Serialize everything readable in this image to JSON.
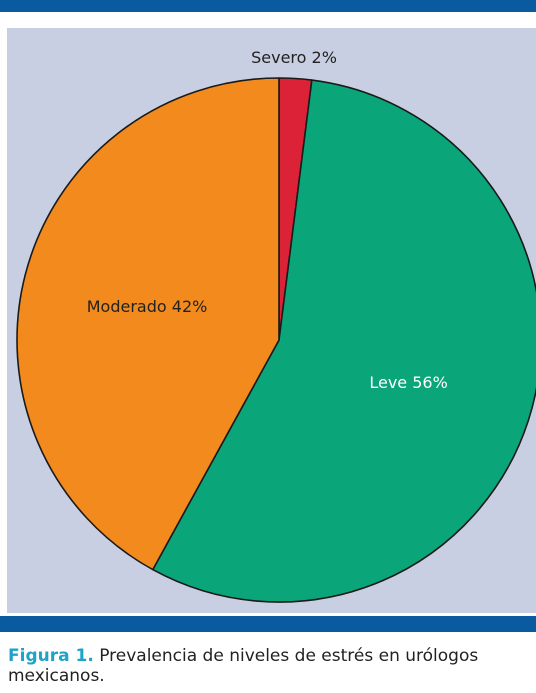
{
  "chart_data": {
    "type": "pie",
    "slices": [
      {
        "label": "Severo 2%",
        "value": 2,
        "color": "#dc2237"
      },
      {
        "label": "Leve 56%",
        "value": 56,
        "color": "#0ba57a"
      },
      {
        "label": "Moderado 42%",
        "value": 42,
        "color": "#f28a1e"
      }
    ]
  },
  "caption": {
    "label": "Figura 1.",
    "text": "Prevalencia de niveles de estrés en urólogos mexicanos."
  },
  "colors": {
    "bar": "#0a5aa0",
    "panel": "#c9cfe2",
    "caption_label": "#1da3c8",
    "label_light": "#ffffff",
    "label_dark": "#222222"
  }
}
